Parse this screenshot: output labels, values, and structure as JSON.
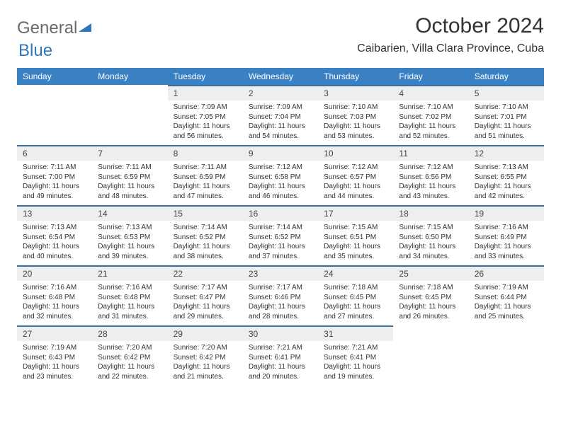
{
  "logo": {
    "part1": "General",
    "part2": "Blue"
  },
  "title": "October 2024",
  "location": "Caibarien, Villa Clara Province, Cuba",
  "colors": {
    "header_bg": "#3a81c4",
    "daynum_bg": "#eceeef",
    "daynum_border": "#3f6d99",
    "text": "#333333",
    "logo_gray": "#6a6a6a",
    "logo_blue": "#2f77bb"
  },
  "day_names": [
    "Sunday",
    "Monday",
    "Tuesday",
    "Wednesday",
    "Thursday",
    "Friday",
    "Saturday"
  ],
  "weeks": [
    [
      null,
      null,
      {
        "day": "1",
        "sunrise": "Sunrise: 7:09 AM",
        "sunset": "Sunset: 7:05 PM",
        "daylight": "Daylight: 11 hours and 56 minutes."
      },
      {
        "day": "2",
        "sunrise": "Sunrise: 7:09 AM",
        "sunset": "Sunset: 7:04 PM",
        "daylight": "Daylight: 11 hours and 54 minutes."
      },
      {
        "day": "3",
        "sunrise": "Sunrise: 7:10 AM",
        "sunset": "Sunset: 7:03 PM",
        "daylight": "Daylight: 11 hours and 53 minutes."
      },
      {
        "day": "4",
        "sunrise": "Sunrise: 7:10 AM",
        "sunset": "Sunset: 7:02 PM",
        "daylight": "Daylight: 11 hours and 52 minutes."
      },
      {
        "day": "5",
        "sunrise": "Sunrise: 7:10 AM",
        "sunset": "Sunset: 7:01 PM",
        "daylight": "Daylight: 11 hours and 51 minutes."
      }
    ],
    [
      {
        "day": "6",
        "sunrise": "Sunrise: 7:11 AM",
        "sunset": "Sunset: 7:00 PM",
        "daylight": "Daylight: 11 hours and 49 minutes."
      },
      {
        "day": "7",
        "sunrise": "Sunrise: 7:11 AM",
        "sunset": "Sunset: 6:59 PM",
        "daylight": "Daylight: 11 hours and 48 minutes."
      },
      {
        "day": "8",
        "sunrise": "Sunrise: 7:11 AM",
        "sunset": "Sunset: 6:59 PM",
        "daylight": "Daylight: 11 hours and 47 minutes."
      },
      {
        "day": "9",
        "sunrise": "Sunrise: 7:12 AM",
        "sunset": "Sunset: 6:58 PM",
        "daylight": "Daylight: 11 hours and 46 minutes."
      },
      {
        "day": "10",
        "sunrise": "Sunrise: 7:12 AM",
        "sunset": "Sunset: 6:57 PM",
        "daylight": "Daylight: 11 hours and 44 minutes."
      },
      {
        "day": "11",
        "sunrise": "Sunrise: 7:12 AM",
        "sunset": "Sunset: 6:56 PM",
        "daylight": "Daylight: 11 hours and 43 minutes."
      },
      {
        "day": "12",
        "sunrise": "Sunrise: 7:13 AM",
        "sunset": "Sunset: 6:55 PM",
        "daylight": "Daylight: 11 hours and 42 minutes."
      }
    ],
    [
      {
        "day": "13",
        "sunrise": "Sunrise: 7:13 AM",
        "sunset": "Sunset: 6:54 PM",
        "daylight": "Daylight: 11 hours and 40 minutes."
      },
      {
        "day": "14",
        "sunrise": "Sunrise: 7:13 AM",
        "sunset": "Sunset: 6:53 PM",
        "daylight": "Daylight: 11 hours and 39 minutes."
      },
      {
        "day": "15",
        "sunrise": "Sunrise: 7:14 AM",
        "sunset": "Sunset: 6:52 PM",
        "daylight": "Daylight: 11 hours and 38 minutes."
      },
      {
        "day": "16",
        "sunrise": "Sunrise: 7:14 AM",
        "sunset": "Sunset: 6:52 PM",
        "daylight": "Daylight: 11 hours and 37 minutes."
      },
      {
        "day": "17",
        "sunrise": "Sunrise: 7:15 AM",
        "sunset": "Sunset: 6:51 PM",
        "daylight": "Daylight: 11 hours and 35 minutes."
      },
      {
        "day": "18",
        "sunrise": "Sunrise: 7:15 AM",
        "sunset": "Sunset: 6:50 PM",
        "daylight": "Daylight: 11 hours and 34 minutes."
      },
      {
        "day": "19",
        "sunrise": "Sunrise: 7:16 AM",
        "sunset": "Sunset: 6:49 PM",
        "daylight": "Daylight: 11 hours and 33 minutes."
      }
    ],
    [
      {
        "day": "20",
        "sunrise": "Sunrise: 7:16 AM",
        "sunset": "Sunset: 6:48 PM",
        "daylight": "Daylight: 11 hours and 32 minutes."
      },
      {
        "day": "21",
        "sunrise": "Sunrise: 7:16 AM",
        "sunset": "Sunset: 6:48 PM",
        "daylight": "Daylight: 11 hours and 31 minutes."
      },
      {
        "day": "22",
        "sunrise": "Sunrise: 7:17 AM",
        "sunset": "Sunset: 6:47 PM",
        "daylight": "Daylight: 11 hours and 29 minutes."
      },
      {
        "day": "23",
        "sunrise": "Sunrise: 7:17 AM",
        "sunset": "Sunset: 6:46 PM",
        "daylight": "Daylight: 11 hours and 28 minutes."
      },
      {
        "day": "24",
        "sunrise": "Sunrise: 7:18 AM",
        "sunset": "Sunset: 6:45 PM",
        "daylight": "Daylight: 11 hours and 27 minutes."
      },
      {
        "day": "25",
        "sunrise": "Sunrise: 7:18 AM",
        "sunset": "Sunset: 6:45 PM",
        "daylight": "Daylight: 11 hours and 26 minutes."
      },
      {
        "day": "26",
        "sunrise": "Sunrise: 7:19 AM",
        "sunset": "Sunset: 6:44 PM",
        "daylight": "Daylight: 11 hours and 25 minutes."
      }
    ],
    [
      {
        "day": "27",
        "sunrise": "Sunrise: 7:19 AM",
        "sunset": "Sunset: 6:43 PM",
        "daylight": "Daylight: 11 hours and 23 minutes."
      },
      {
        "day": "28",
        "sunrise": "Sunrise: 7:20 AM",
        "sunset": "Sunset: 6:42 PM",
        "daylight": "Daylight: 11 hours and 22 minutes."
      },
      {
        "day": "29",
        "sunrise": "Sunrise: 7:20 AM",
        "sunset": "Sunset: 6:42 PM",
        "daylight": "Daylight: 11 hours and 21 minutes."
      },
      {
        "day": "30",
        "sunrise": "Sunrise: 7:21 AM",
        "sunset": "Sunset: 6:41 PM",
        "daylight": "Daylight: 11 hours and 20 minutes."
      },
      {
        "day": "31",
        "sunrise": "Sunrise: 7:21 AM",
        "sunset": "Sunset: 6:41 PM",
        "daylight": "Daylight: 11 hours and 19 minutes."
      },
      null,
      null
    ]
  ]
}
